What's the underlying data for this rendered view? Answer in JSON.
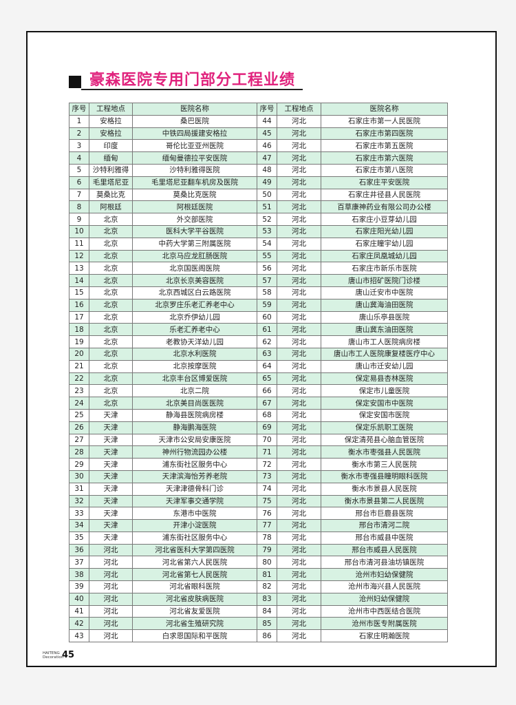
{
  "title": "豪森医院专用门部分工程业绩",
  "headers": [
    "序号",
    "工程地点",
    "医院名称",
    "序号",
    "工程地点",
    "医院名称"
  ],
  "left_rows": [
    [
      "1",
      "安格拉",
      "桑巴医院"
    ],
    [
      "2",
      "安格拉",
      "中铁四局援建安格拉"
    ],
    [
      "3",
      "印度",
      "哥伦比亚亚州医院"
    ],
    [
      "4",
      "缅甸",
      "缅甸曼德拉平安医院"
    ],
    [
      "5",
      "沙特利雅得",
      "沙特利雅得医院"
    ],
    [
      "6",
      "毛里塔尼亚",
      "毛里塔尼亚翻车机房及医院"
    ],
    [
      "7",
      "莫桑比克",
      "莫桑比克医院"
    ],
    [
      "8",
      "阿根廷",
      "阿根廷医院"
    ],
    [
      "9",
      "北京",
      "外交部医院"
    ],
    [
      "10",
      "北京",
      "医科大学平谷医院"
    ],
    [
      "11",
      "北京",
      "中药大学第三附属医院"
    ],
    [
      "12",
      "北京",
      "北京马应龙肛肠医院"
    ],
    [
      "13",
      "北京",
      "北京国医阁医院"
    ],
    [
      "14",
      "北京",
      "北京长京美容医院"
    ],
    [
      "15",
      "北京",
      "北京西城区白云路医院"
    ],
    [
      "16",
      "北京",
      "北京罗庄乐老汇养老中心"
    ],
    [
      "17",
      "北京",
      "北京乔伊幼儿园"
    ],
    [
      "18",
      "北京",
      "乐老汇养老中心"
    ],
    [
      "19",
      "北京",
      "老教协天洋幼儿园"
    ],
    [
      "20",
      "北京",
      "北京水利医院"
    ],
    [
      "21",
      "北京",
      "北京按摩医院"
    ],
    [
      "22",
      "北京",
      "北京丰台区博爱医院"
    ],
    [
      "23",
      "北京",
      "北京二院"
    ],
    [
      "24",
      "北京",
      "北京美目尚医医院"
    ],
    [
      "25",
      "天津",
      "静海县医院病房楼"
    ],
    [
      "26",
      "天津",
      "静海鹏海医院"
    ],
    [
      "27",
      "天津",
      "天津市公安局安康医院"
    ],
    [
      "28",
      "天津",
      "神州行物流园办公楼"
    ],
    [
      "29",
      "天津",
      "浦东街社区服务中心"
    ],
    [
      "30",
      "天津",
      "天津滨海怡芳养老院"
    ],
    [
      "31",
      "天津",
      "天津津德骨科门诊"
    ],
    [
      "32",
      "天津",
      "天津军事交通学院"
    ],
    [
      "33",
      "天津",
      "东港市中医院"
    ],
    [
      "34",
      "天津",
      "开津小淀医院"
    ],
    [
      "35",
      "天津",
      "浦东街社区服务中心"
    ],
    [
      "36",
      "河北",
      "河北省医科大学第四医院"
    ],
    [
      "37",
      "河北",
      "河北省第六人民医院"
    ],
    [
      "38",
      "河北",
      "河北省第七人民医院"
    ],
    [
      "39",
      "河北",
      "河北省眼科医院"
    ],
    [
      "40",
      "河北",
      "河北省皮肤病医院"
    ],
    [
      "41",
      "河北",
      "河北省友爱医院"
    ],
    [
      "42",
      "河北",
      "河北省生殖研究院"
    ],
    [
      "43",
      "河北",
      "白求恩国际和平医院"
    ]
  ],
  "right_rows": [
    [
      "44",
      "河北",
      "石家庄市第一人民医院"
    ],
    [
      "45",
      "河北",
      "石家庄市第四医院"
    ],
    [
      "46",
      "河北",
      "石家庄市第五医院"
    ],
    [
      "47",
      "河北",
      "石家庄市第六医院"
    ],
    [
      "48",
      "河北",
      "石家庄市第八医院"
    ],
    [
      "49",
      "河北",
      "石家庄平安医院"
    ],
    [
      "50",
      "河北",
      "石家庄井径县人民医院"
    ],
    [
      "51",
      "河北",
      "百草康神药业有限公司办公楼"
    ],
    [
      "52",
      "河北",
      "石家庄小豆芽幼儿园"
    ],
    [
      "53",
      "河北",
      "石家庄阳光幼儿园"
    ],
    [
      "54",
      "河北",
      "石家庄瞳宇幼儿园"
    ],
    [
      "55",
      "河北",
      "石家庄凤凰城幼儿园"
    ],
    [
      "56",
      "河北",
      "石家庄市新乐市医院"
    ],
    [
      "57",
      "河北",
      "唐山市招矿医院门诊楼"
    ],
    [
      "58",
      "河北",
      "唐山迁安市中医院"
    ],
    [
      "59",
      "河北",
      "唐山冀海油田医院"
    ],
    [
      "60",
      "河北",
      "唐山乐亭县医院"
    ],
    [
      "61",
      "河北",
      "唐山冀东油田医院"
    ],
    [
      "62",
      "河北",
      "唐山市工人医院病房楼"
    ],
    [
      "63",
      "河北",
      "唐山市工人医院康复楼医疗中心"
    ],
    [
      "64",
      "河北",
      "唐山市迁安幼儿园"
    ],
    [
      "65",
      "河北",
      "保定易县杏林医院"
    ],
    [
      "66",
      "河北",
      "保定市儿童医院"
    ],
    [
      "67",
      "河北",
      "保定安国市中医院"
    ],
    [
      "68",
      "河北",
      "保定安国市医院"
    ],
    [
      "69",
      "河北",
      "保定乐凯职工医院"
    ],
    [
      "70",
      "河北",
      "保定清苑县心脑血管医院"
    ],
    [
      "71",
      "河北",
      "衡水市枣强县人民医院"
    ],
    [
      "72",
      "河北",
      "衡水市第三人民医院"
    ],
    [
      "73",
      "河北",
      "衡水市枣强县瞳明眼科医院"
    ],
    [
      "74",
      "河北",
      "衡水市景县人民医院"
    ],
    [
      "75",
      "河北",
      "衡水市景县第二人民医院"
    ],
    [
      "76",
      "河北",
      "邢台市巨鹿县医院"
    ],
    [
      "77",
      "河北",
      "邢台市清河二院"
    ],
    [
      "78",
      "河北",
      "邢台市威县中医院"
    ],
    [
      "79",
      "河北",
      "邢台市威县人民医院"
    ],
    [
      "80",
      "河北",
      "邢台市清河县油坊镇医院"
    ],
    [
      "81",
      "河北",
      "沧州市妇幼保健院"
    ],
    [
      "82",
      "河北",
      "沧州市海兴县人民医院"
    ],
    [
      "83",
      "河北",
      "沧州妇幼保健院"
    ],
    [
      "84",
      "河北",
      "沧州市中西医结合医院"
    ],
    [
      "85",
      "河北",
      "沧州市医专附属医院"
    ],
    [
      "86",
      "河北",
      "石家庄明瀚医院"
    ]
  ],
  "footer": {
    "brand_line1": "HAITENG",
    "brand_line2": "Decoration",
    "page_number": "45"
  },
  "colors": {
    "title": "#e0237d",
    "row_highlight": "#d8f2e3"
  }
}
